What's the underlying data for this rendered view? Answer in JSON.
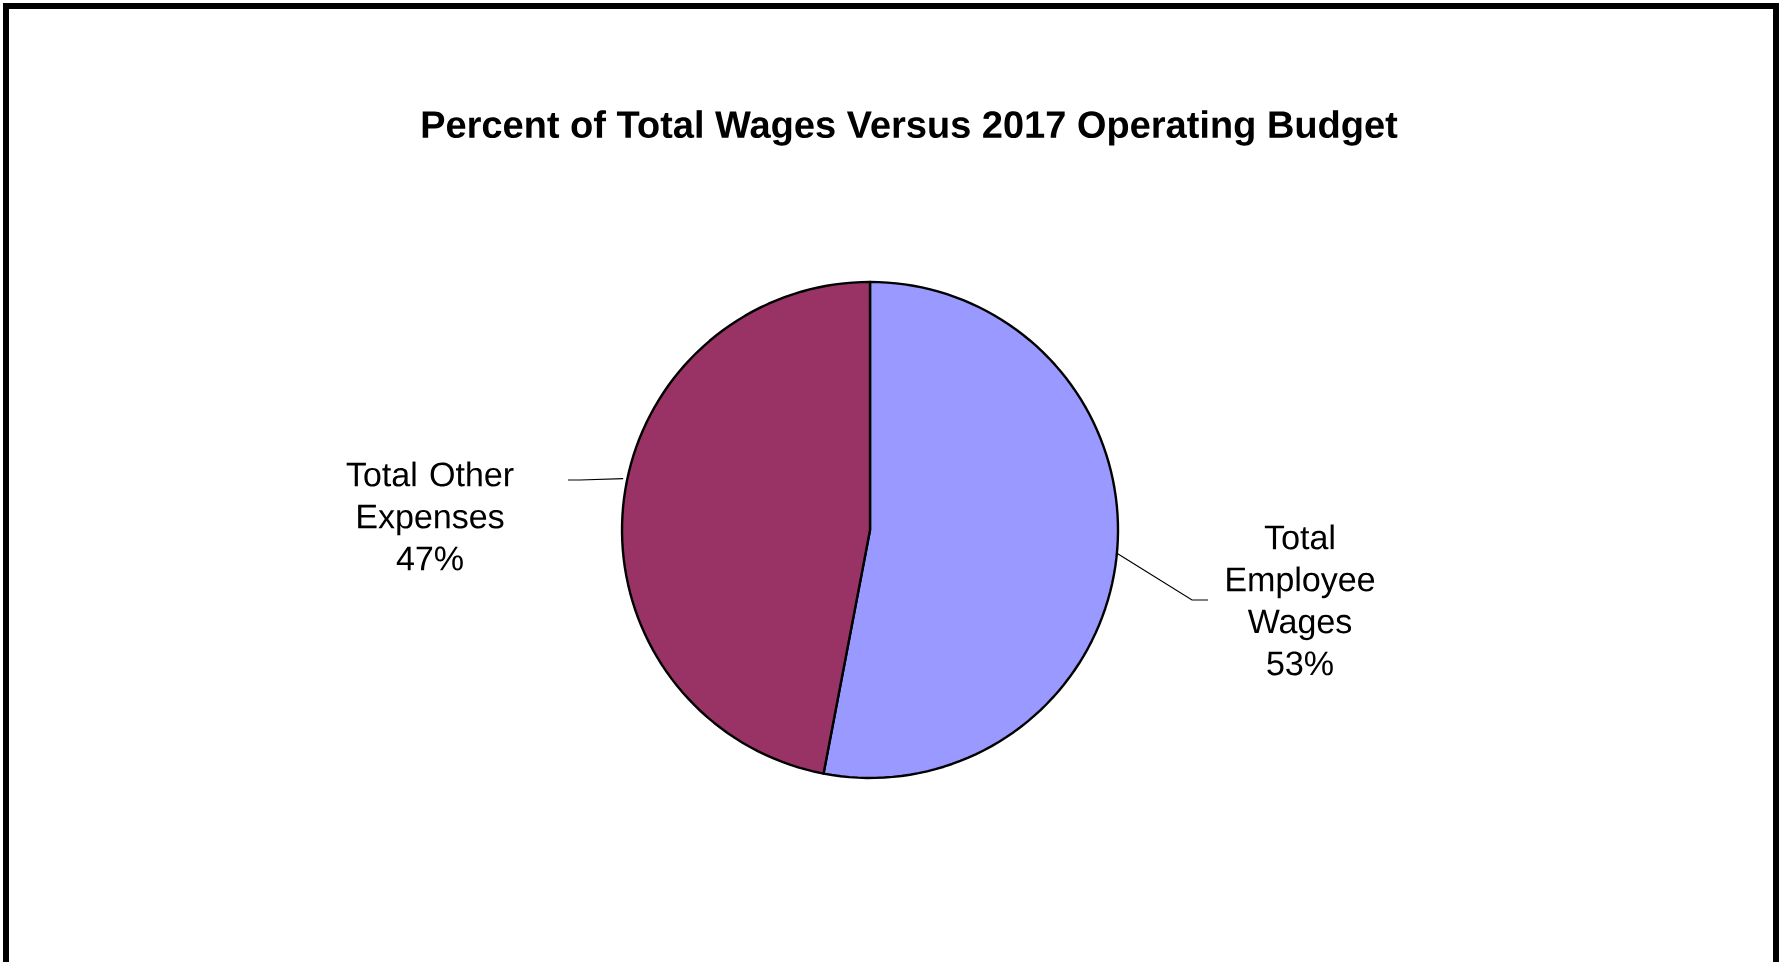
{
  "chart_data": {
    "type": "pie",
    "title": "Percent of Total Wages Versus 2017 Operating Budget",
    "categories": [
      "Total Employee Wages",
      "Total Other Expenses"
    ],
    "values": [
      53,
      47
    ],
    "value_labels": [
      "53%",
      "47%"
    ],
    "colors": [
      "#9999ff",
      "#993366"
    ]
  }
}
